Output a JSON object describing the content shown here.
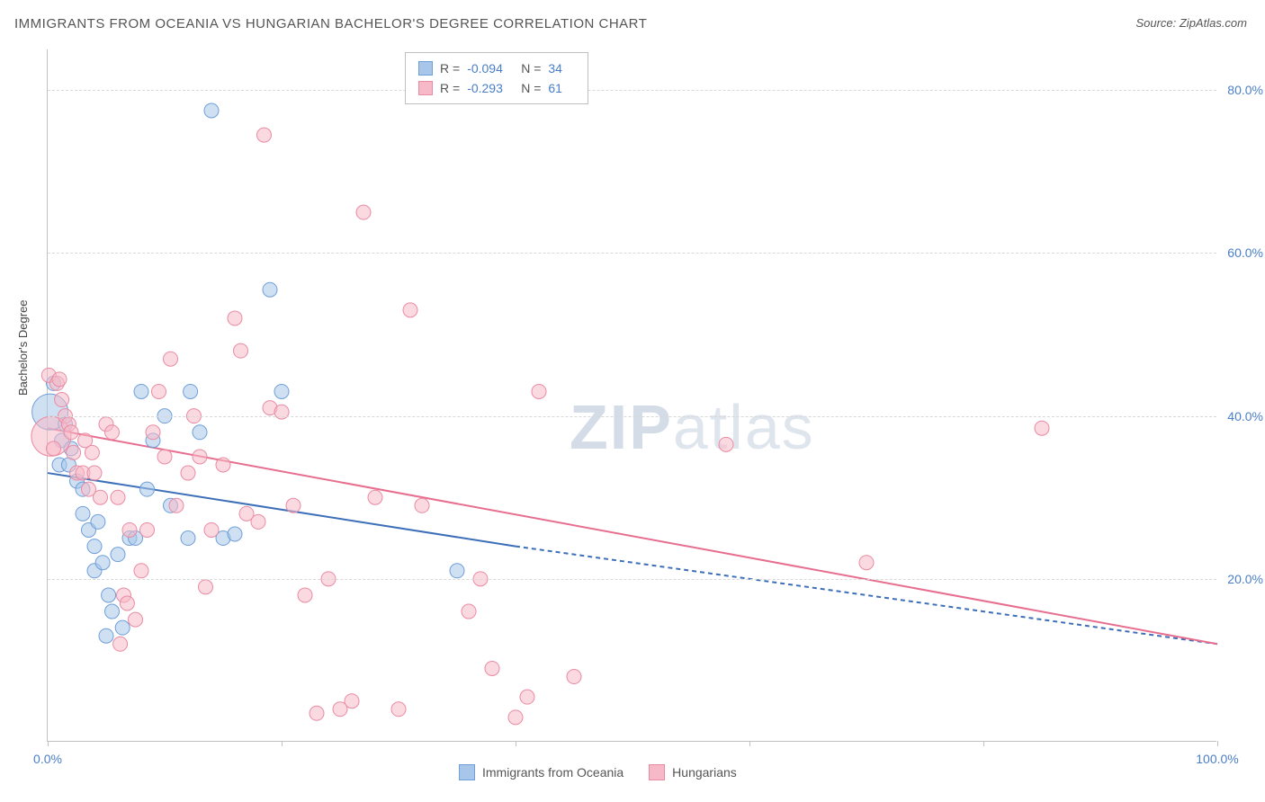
{
  "title": "IMMIGRANTS FROM OCEANIA VS HUNGARIAN BACHELOR'S DEGREE CORRELATION CHART",
  "source_prefix": "Source: ",
  "source_name": "ZipAtlas.com",
  "ylabel": "Bachelor's Degree",
  "watermark_bold": "ZIP",
  "watermark_rest": "atlas",
  "chart": {
    "type": "scatter",
    "xlim": [
      0,
      100
    ],
    "ylim": [
      0,
      85
    ],
    "x_tick_positions": [
      0,
      20,
      40,
      60,
      80,
      100
    ],
    "x_tick_labels": [
      "0.0%",
      "",
      "",
      "",
      "",
      "100.0%"
    ],
    "y_gridlines": [
      20,
      40,
      60,
      80
    ],
    "y_tick_labels": [
      "20.0%",
      "40.0%",
      "60.0%",
      "80.0%"
    ],
    "background_color": "#ffffff",
    "grid_color": "#d8d8d8",
    "axis_color": "#c0c0c0",
    "tick_label_color": "#4a7ec9",
    "series": [
      {
        "name": "Immigrants from Oceania",
        "fill": "#a8c6ea",
        "fill_opacity": 0.55,
        "stroke": "#6f9fd8",
        "marker_radius": 8,
        "trend": {
          "x1": 0,
          "y1": 33,
          "x2_solid": 40,
          "y2_solid": 24,
          "x2_dash": 100,
          "y2_dash": 12,
          "stroke": "#3d6fb8",
          "width": 2
        },
        "R": "-0.094",
        "N": "34",
        "points": [
          [
            0.2,
            40.5,
            20
          ],
          [
            0.5,
            44
          ],
          [
            1,
            34
          ],
          [
            1.2,
            37
          ],
          [
            1.5,
            39
          ],
          [
            1.8,
            34
          ],
          [
            2,
            36
          ],
          [
            2.5,
            32
          ],
          [
            3,
            31
          ],
          [
            3,
            28
          ],
          [
            3.5,
            26
          ],
          [
            4,
            24
          ],
          [
            4,
            21
          ],
          [
            4.3,
            27
          ],
          [
            4.7,
            22
          ],
          [
            5,
            13
          ],
          [
            5.2,
            18
          ],
          [
            5.5,
            16
          ],
          [
            6,
            23
          ],
          [
            6.4,
            14
          ],
          [
            7,
            25
          ],
          [
            7.5,
            25
          ],
          [
            8,
            43
          ],
          [
            8.5,
            31
          ],
          [
            9,
            37
          ],
          [
            10,
            40
          ],
          [
            10.5,
            29
          ],
          [
            12,
            25
          ],
          [
            12.2,
            43
          ],
          [
            13,
            38
          ],
          [
            14,
            77.5
          ],
          [
            15,
            25
          ],
          [
            16,
            25.5
          ],
          [
            19,
            55.5
          ],
          [
            20,
            43
          ],
          [
            35,
            21
          ]
        ]
      },
      {
        "name": "Hungarians",
        "fill": "#f7b9c7",
        "fill_opacity": 0.55,
        "stroke": "#e98ba3",
        "marker_radius": 8,
        "trend": {
          "x1": 0,
          "y1": 38.5,
          "x2_solid": 100,
          "y2_solid": 12,
          "stroke": "#e76e8f",
          "width": 2
        },
        "R": "-0.293",
        "N": "61",
        "points": [
          [
            0.1,
            45
          ],
          [
            0.3,
            37.5,
            22
          ],
          [
            0.5,
            36
          ],
          [
            0.8,
            44
          ],
          [
            1,
            44.5
          ],
          [
            1.2,
            42
          ],
          [
            1.5,
            40
          ],
          [
            1.8,
            39
          ],
          [
            2,
            38
          ],
          [
            2.2,
            35.5
          ],
          [
            2.5,
            33
          ],
          [
            3,
            33
          ],
          [
            3.2,
            37
          ],
          [
            3.5,
            31
          ],
          [
            3.8,
            35.5
          ],
          [
            4,
            33
          ],
          [
            4.5,
            30
          ],
          [
            5,
            39
          ],
          [
            5.5,
            38
          ],
          [
            6,
            30
          ],
          [
            6.2,
            12
          ],
          [
            6.5,
            18
          ],
          [
            6.8,
            17
          ],
          [
            7,
            26
          ],
          [
            7.5,
            15
          ],
          [
            8,
            21
          ],
          [
            8.5,
            26
          ],
          [
            9,
            38
          ],
          [
            9.5,
            43
          ],
          [
            10,
            35
          ],
          [
            10.5,
            47
          ],
          [
            11,
            29
          ],
          [
            12,
            33
          ],
          [
            12.5,
            40
          ],
          [
            13,
            35
          ],
          [
            13.5,
            19
          ],
          [
            14,
            26
          ],
          [
            15,
            34
          ],
          [
            16,
            52
          ],
          [
            16.5,
            48
          ],
          [
            17,
            28
          ],
          [
            18,
            27
          ],
          [
            18.5,
            74.5
          ],
          [
            19,
            41
          ],
          [
            20,
            40.5
          ],
          [
            21,
            29
          ],
          [
            22,
            18
          ],
          [
            23,
            3.5
          ],
          [
            24,
            20
          ],
          [
            25,
            4
          ],
          [
            26,
            5
          ],
          [
            27,
            65
          ],
          [
            28,
            30
          ],
          [
            30,
            4
          ],
          [
            31,
            53
          ],
          [
            32,
            29
          ],
          [
            36,
            16
          ],
          [
            37,
            20
          ],
          [
            38,
            9
          ],
          [
            40,
            3
          ],
          [
            41,
            5.5
          ],
          [
            42,
            43
          ],
          [
            45,
            8
          ],
          [
            58,
            36.5
          ],
          [
            70,
            22
          ],
          [
            85,
            38.5
          ]
        ]
      }
    ]
  },
  "stat_legend": {
    "r_label": "R =",
    "n_label": "N ="
  }
}
